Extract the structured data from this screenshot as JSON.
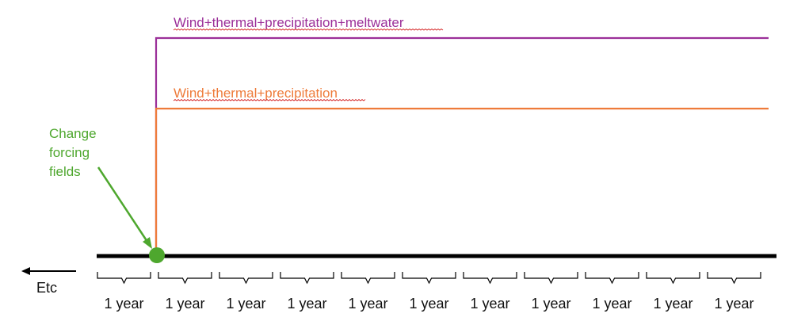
{
  "colors": {
    "purple": "#9b2f99",
    "orange": "#ee7b3a",
    "green": "#4ea72e",
    "black": "#000000",
    "squiggle": "#d62b2b"
  },
  "experiments": [
    {
      "label": "Wind+thermal+precipitation+meltwater",
      "color": "#9b2f99"
    },
    {
      "label": "Wind+thermal+precipitation",
      "color": "#ee7b3a"
    }
  ],
  "change_annotation": {
    "lines": [
      "Change",
      "forcing",
      "fields"
    ],
    "color": "#4ea72e"
  },
  "etc_label": "Etc",
  "years": [
    "1 year",
    "1 year",
    "1 year",
    "1 year",
    "1 year",
    "1 year",
    "1 year",
    "1 year",
    "1 year",
    "1 year",
    "1 year"
  ]
}
